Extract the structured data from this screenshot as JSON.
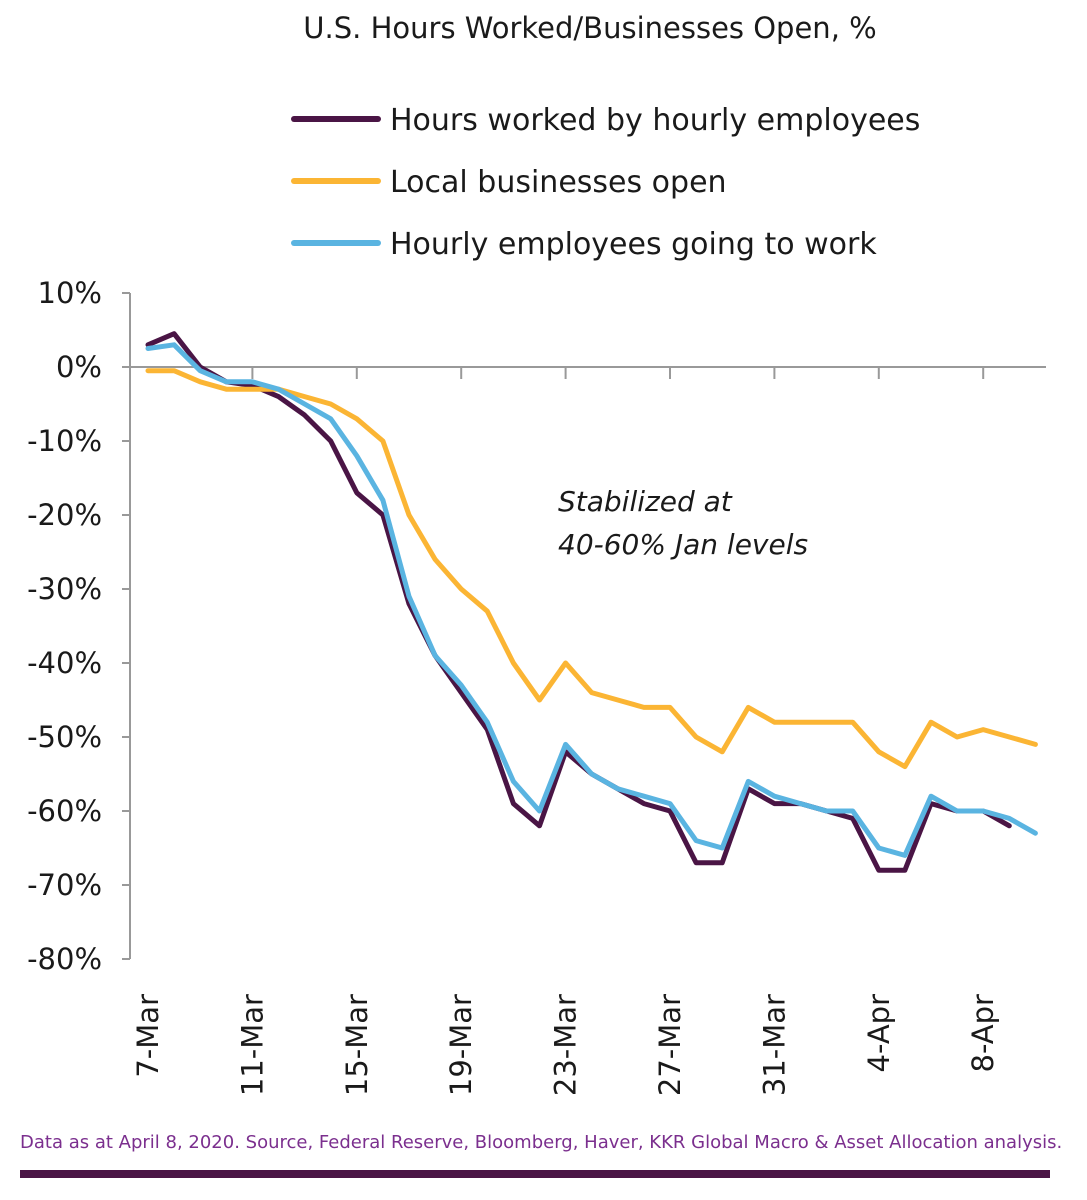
{
  "chart_data": {
    "type": "line",
    "title": "U.S. Hours Worked/Businesses Open, %",
    "x": [
      "7-Mar",
      "8-Mar",
      "9-Mar",
      "10-Mar",
      "11-Mar",
      "12-Mar",
      "13-Mar",
      "14-Mar",
      "15-Mar",
      "16-Mar",
      "17-Mar",
      "18-Mar",
      "19-Mar",
      "20-Mar",
      "21-Mar",
      "22-Mar",
      "23-Mar",
      "24-Mar",
      "25-Mar",
      "26-Mar",
      "27-Mar",
      "28-Mar",
      "29-Mar",
      "30-Mar",
      "31-Mar",
      "1-Apr",
      "2-Apr",
      "3-Apr",
      "4-Apr",
      "5-Apr",
      "6-Apr",
      "7-Apr",
      "8-Apr",
      "9-Apr",
      "10-Apr"
    ],
    "x_tick_labels": [
      "7-Mar",
      "11-Mar",
      "15-Mar",
      "19-Mar",
      "23-Mar",
      "27-Mar",
      "31-Mar",
      "4-Apr",
      "8-Apr"
    ],
    "x_tick_indices": [
      0,
      4,
      8,
      12,
      16,
      20,
      24,
      28,
      32
    ],
    "y_tick_labels": [
      "10%",
      "0%",
      "-10%",
      "-20%",
      "-30%",
      "-40%",
      "-50%",
      "-60%",
      "-70%",
      "-80%"
    ],
    "y_tick_values": [
      10,
      0,
      -10,
      -20,
      -30,
      -40,
      -50,
      -60,
      -70,
      -80
    ],
    "ylim": [
      -80,
      10
    ],
    "xlabel": "",
    "ylabel": "",
    "grid": false,
    "legend_position": "top",
    "series": [
      {
        "name": "Hours worked by hourly employees",
        "color": "#4a1545",
        "values": [
          3,
          4.5,
          0,
          -2,
          -2.5,
          -4,
          -6.5,
          -10,
          -17,
          -20,
          -32,
          -39,
          -44,
          -49,
          -59,
          -62,
          -52,
          -55,
          -57,
          -59,
          -60,
          -67,
          -67,
          -57,
          -59,
          -59,
          -60,
          -61,
          -68,
          -68,
          -59,
          -60,
          -60,
          -62,
          null
        ]
      },
      {
        "name": "Local businesses open",
        "color": "#fbb534",
        "values": [
          -0.5,
          -0.5,
          -2,
          -3,
          -3,
          -3,
          -4,
          -5,
          -7,
          -10,
          -20,
          -26,
          -30,
          -33,
          -40,
          -45,
          -40,
          -44,
          -45,
          -46,
          -46,
          -50,
          -52,
          -46,
          -48,
          -48,
          -48,
          -48,
          -52,
          -54,
          -48,
          -50,
          -49,
          -50,
          -51
        ]
      },
      {
        "name": "Hourly employees going to work",
        "color": "#5ab4e1",
        "values": [
          2.5,
          3,
          -0.5,
          -2,
          -2,
          -3,
          -5,
          -7,
          -12,
          -18,
          -31,
          -39,
          -43,
          -48,
          -56,
          -60,
          -51,
          -55,
          -57,
          -58,
          -59,
          -64,
          -65,
          -56,
          -58,
          -59,
          -60,
          -60,
          -65,
          -66,
          -58,
          -60,
          -60,
          -61,
          -63
        ]
      }
    ],
    "annotation": [
      "Stabilized at",
      "40-60% Jan levels"
    ]
  },
  "footnote": "Data as at April 8, 2020. Source, Federal Reserve, Bloomberg, Haver, KKR Global Macro & Asset Allocation analysis.",
  "colors": {
    "axis": "#999999",
    "footer_bar": "#4a1545",
    "footnote": "#7b2f8e"
  }
}
